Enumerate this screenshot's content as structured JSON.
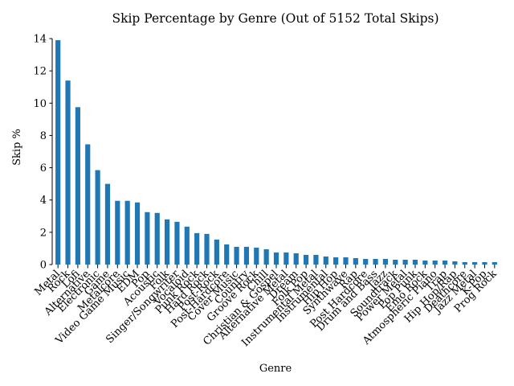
{
  "chart_data": {
    "type": "bar",
    "title": "Skip Percentage by Genre (Out of 5152 Total Skips)",
    "xlabel": "Genre",
    "ylabel": "Skip %",
    "ylim": [
      0,
      14
    ],
    "yticks": [
      0,
      2,
      4,
      6,
      8,
      10,
      12,
      14
    ],
    "grid": false,
    "bar_color": "#1f77b4",
    "categories": [
      "Metal",
      "Rock",
      "Lofi",
      "Alternative",
      "Electronic",
      "Game",
      "Metalcore",
      "Video Game Music",
      "EDM",
      "Pop",
      "Acoustic",
      "Folk",
      "Singer/Songwriter",
      "Vocaloid",
      "Punk Rock",
      "Hard Rock",
      "Post-Rock",
      "Post-Hardcore",
      "Cover Music",
      "Country",
      "Groove Rock",
      "Chill",
      "Christian & Gospel",
      "Alternative Metal",
      "Dream",
      "Folk Pop",
      "Instrumental Metal",
      "Instrumental",
      "Hip Hop",
      "Synthwave",
      "Rap",
      "Post Hardcore",
      "Drum and Bass",
      "Jazz",
      "Soundtrack",
      "Power Metal",
      "Pop Punk",
      "Emo Rock",
      "Atmospheric Piano",
      "Trap",
      "Hip Hop/Rap",
      "Deathcore",
      "Jazz Metal",
      "K-Pop",
      "Prog Rock"
    ],
    "values": [
      13.9,
      11.4,
      9.75,
      7.45,
      5.85,
      5.0,
      3.95,
      3.95,
      3.85,
      3.25,
      3.2,
      2.8,
      2.65,
      2.35,
      1.95,
      1.9,
      1.55,
      1.25,
      1.1,
      1.1,
      1.05,
      0.95,
      0.75,
      0.75,
      0.7,
      0.6,
      0.6,
      0.5,
      0.45,
      0.45,
      0.4,
      0.35,
      0.35,
      0.35,
      0.3,
      0.3,
      0.3,
      0.25,
      0.25,
      0.25,
      0.2,
      0.15,
      0.15,
      0.15,
      0.15
    ]
  }
}
